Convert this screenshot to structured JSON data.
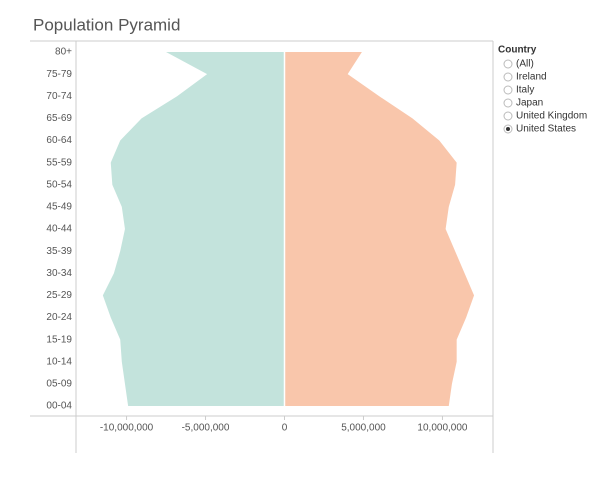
{
  "chart_data": {
    "type": "pyramid",
    "title": "Population Pyramid",
    "categories": [
      "80+",
      "75-79",
      "70-74",
      "65-69",
      "60-64",
      "55-59",
      "50-54",
      "45-49",
      "40-44",
      "35-39",
      "30-34",
      "25-29",
      "20-24",
      "15-19",
      "10-14",
      "05-09",
      "00-04"
    ],
    "series": [
      {
        "color": "#c3e3dc",
        "values": [
          -7500000,
          -4900000,
          -6800000,
          -9050000,
          -10400000,
          -11000000,
          -10900000,
          -10300000,
          -10100000,
          -10400000,
          -10800000,
          -11500000,
          -11000000,
          -10400000,
          -10300000,
          -10100000,
          -9900000
        ]
      },
      {
        "color": "#f9c6ab",
        "values": [
          4900000,
          4000000,
          6000000,
          8100000,
          9800000,
          10900000,
          10800000,
          10400000,
          10200000,
          10800000,
          11400000,
          12000000,
          11500000,
          10900000,
          10900000,
          10600000,
          10400000
        ]
      }
    ],
    "xlim": [
      -13200000,
      13200000
    ],
    "xticks": [
      {
        "value": -10000000,
        "label": "-10,000,000"
      },
      {
        "value": -5000000,
        "label": "-5,000,000"
      },
      0,
      {
        "value": 5000000,
        "label": "5,000,000"
      },
      {
        "value": 10000000,
        "label": "10,000,000"
      }
    ]
  },
  "filter": {
    "title": "Country",
    "options": [
      "(All)",
      "Ireland",
      "Italy",
      "Japan",
      "United Kingdom",
      "United States"
    ],
    "selected": 5
  }
}
